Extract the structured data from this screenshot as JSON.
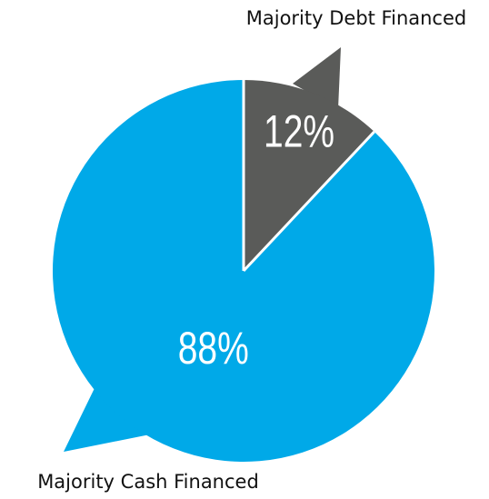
{
  "chart_data": {
    "type": "pie",
    "categories": [
      "Majority Debt Financed",
      "Majority Cash Financed"
    ],
    "values": [
      12,
      88
    ],
    "value_labels": [
      "12%",
      "88%"
    ],
    "colors": [
      "#5a5b59",
      "#00a9e8"
    ]
  }
}
